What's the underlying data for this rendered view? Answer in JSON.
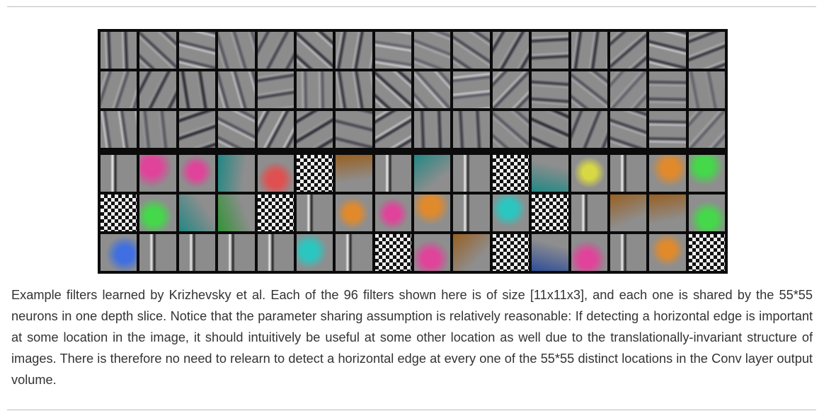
{
  "caption": "Example filters learned by Krizhevsky et al. Each of the 96 filters shown here is of size [11x11x3], and each one is shared by the 55*55 neurons in one depth slice. Notice that the parameter sharing assumption is relatively reasonable: If detecting a horizontal edge is important at some location in the image, it should intuitively be useful at some other location as well due to the translationally-invariant structure of images. There is therefore no need to relearn to detect a horizontal edge at every one of the 55*55 distinct locations in the Conv layer output volume.",
  "figure": {
    "rows": 6,
    "cols": 16,
    "filter_count": 96,
    "colors": {
      "frame": "#0b0b0b",
      "neutral_gray": "#8a8a8a"
    }
  }
}
